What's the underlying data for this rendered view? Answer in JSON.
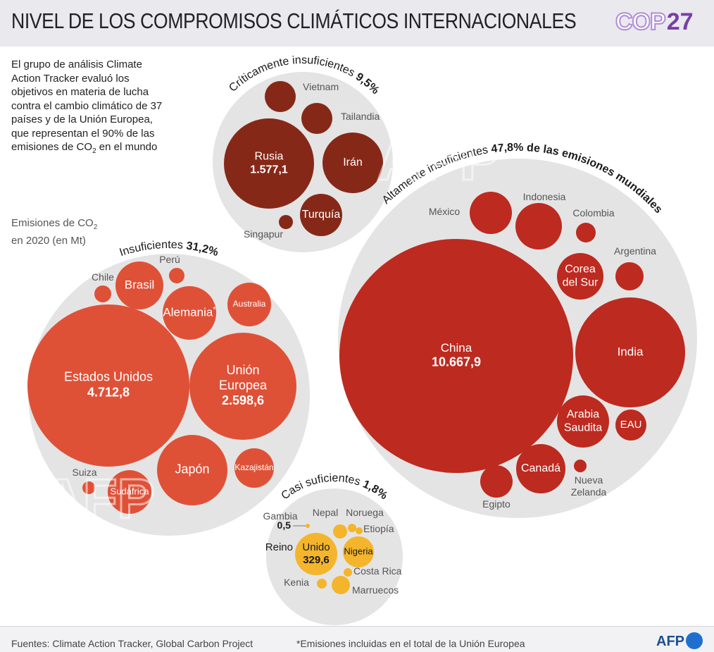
{
  "header": {
    "title": "NIVEL DE LOS COMPROMISOS CLIMÁTICOS INTERNACIONALES",
    "cop_logo_text": "COP",
    "cop_logo_number": "27"
  },
  "intro": {
    "text_before_sub": "El grupo de análisis Climate Action Tracker evaluó los objetivos en materia de lucha contra el cambio climático de 37 países y de la Unión Europea, que representan el 90% de las emisiones de CO",
    "sub": "2",
    "text_after_sub": " en el mundo"
  },
  "emissions_caption": {
    "line1_before_sub": "Emisiones de CO",
    "sub": "2",
    "line2": "en 2020 (en Mt)"
  },
  "colors": {
    "group_bg": "#e4e4e4",
    "criticamente": "#862818",
    "altamente": "#bd2a20",
    "insuficientes": "#df5137",
    "casi": "#f4b52c",
    "white_text": "#ffffff",
    "dark_text": "#1a1a1a",
    "label_grey": "#555555"
  },
  "chart_data": {
    "type": "packed-bubble",
    "units": "Mt CO2 (2020)",
    "watermark": "AFP",
    "groups": [
      {
        "id": "criticamente",
        "label": "Críticamente insuficientes",
        "share": "9,5%",
        "share_suffix": "",
        "countries": [
          {
            "name": "Vietnam",
            "label_outside": true
          },
          {
            "name": "Tailandia",
            "label_outside": true
          },
          {
            "name": "Rusia",
            "value_label": "1.577,1",
            "value": 1577.1
          },
          {
            "name": "Irán"
          },
          {
            "name": "Turquía"
          },
          {
            "name": "Singapur",
            "label_outside": true
          }
        ]
      },
      {
        "id": "altamente",
        "label": "Altamente insuficientes",
        "share": "47,8%",
        "share_suffix": " de las emisiones mundiales",
        "countries": [
          {
            "name": "México",
            "label_outside": true
          },
          {
            "name": "Indonesia",
            "label_outside": true
          },
          {
            "name": "Colombia",
            "label_outside": true
          },
          {
            "name": "Corea del Sur"
          },
          {
            "name": "Argentina",
            "label_outside": true
          },
          {
            "name": "China",
            "value_label": "10.667,9",
            "value": 10667.9
          },
          {
            "name": "India"
          },
          {
            "name": "Arabia Saudita"
          },
          {
            "name": "EAU"
          },
          {
            "name": "Canadá"
          },
          {
            "name": "Nueva Zelanda",
            "label_outside": true
          },
          {
            "name": "Egipto",
            "label_outside": true
          }
        ]
      },
      {
        "id": "insuficientes",
        "label": "Insuficientes",
        "share": "31,2%",
        "share_suffix": "",
        "countries": [
          {
            "name": "Chile",
            "label_outside": true
          },
          {
            "name": "Brasil"
          },
          {
            "name": "Perú",
            "label_outside": true
          },
          {
            "name": "Alemania",
            "footnote_mark": "*"
          },
          {
            "name": "Australia"
          },
          {
            "name": "Estados Unidos",
            "value_label": "4.712,8",
            "value": 4712.8
          },
          {
            "name": "Unión Europea",
            "value_label": "2.598,6",
            "value": 2598.6
          },
          {
            "name": "Japón"
          },
          {
            "name": "Kazajistán"
          },
          {
            "name": "Suiza",
            "label_outside": true
          },
          {
            "name": "Sudáfrica"
          }
        ]
      },
      {
        "id": "casi",
        "label": "Casi suficientes",
        "share": "1,8%",
        "share_suffix": "",
        "countries": [
          {
            "name": "Gambia",
            "value_label": "0,5",
            "value": 0.5,
            "label_outside": true
          },
          {
            "name": "Nepal",
            "label_outside": true
          },
          {
            "name": "Noruega",
            "label_outside": true
          },
          {
            "name": "Etiopía",
            "label_outside": true
          },
          {
            "name": "Reino Unido",
            "value_label": "329,6",
            "value": 329.6
          },
          {
            "name": "Nigeria"
          },
          {
            "name": "Costa Rica",
            "label_outside": true
          },
          {
            "name": "Kenia",
            "label_outside": true
          },
          {
            "name": "Marruecos",
            "label_outside": true
          }
        ]
      }
    ]
  },
  "footer": {
    "sources": "Fuentes: Climate Action Tracker, Global Carbon Project",
    "footnote": "*Emisiones incluidas en el total de la Unión Europea",
    "afp_logo": "AFP"
  }
}
